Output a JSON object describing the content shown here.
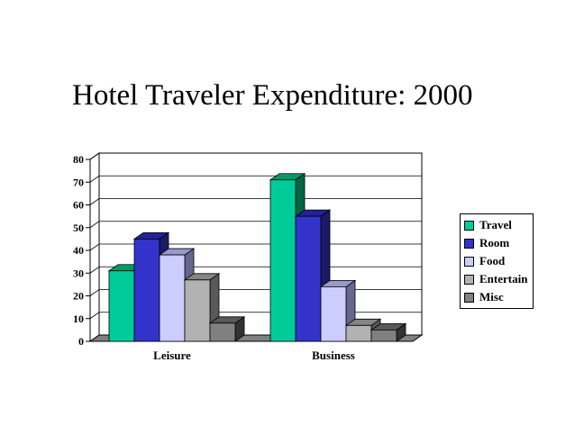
{
  "chart_data": {
    "type": "bar",
    "title": "Hotel Traveler Expenditure: 2000",
    "categories": [
      "Leisure",
      "Business"
    ],
    "series": [
      {
        "name": "Travel",
        "values": [
          31,
          71
        ],
        "color": "#00CC99",
        "side": "#006644",
        "top": "#009966"
      },
      {
        "name": "Room",
        "values": [
          45,
          55
        ],
        "color": "#3333CC",
        "side": "#1A1A66",
        "top": "#222299"
      },
      {
        "name": "Food",
        "values": [
          38,
          24
        ],
        "color": "#CCCCFF",
        "side": "#66668F",
        "top": "#9999CC"
      },
      {
        "name": "Entertain",
        "values": [
          27,
          7
        ],
        "color": "#B2B2B2",
        "side": "#595959",
        "top": "#858585"
      },
      {
        "name": "Misc",
        "values": [
          8,
          5
        ],
        "color": "#808080",
        "side": "#333333",
        "top": "#595959"
      }
    ],
    "ylim": [
      0,
      80
    ],
    "yticks": [
      "0",
      "10",
      "20",
      "30",
      "40",
      "50",
      "60",
      "70",
      "80"
    ],
    "grid": true,
    "legend_position": "right"
  }
}
